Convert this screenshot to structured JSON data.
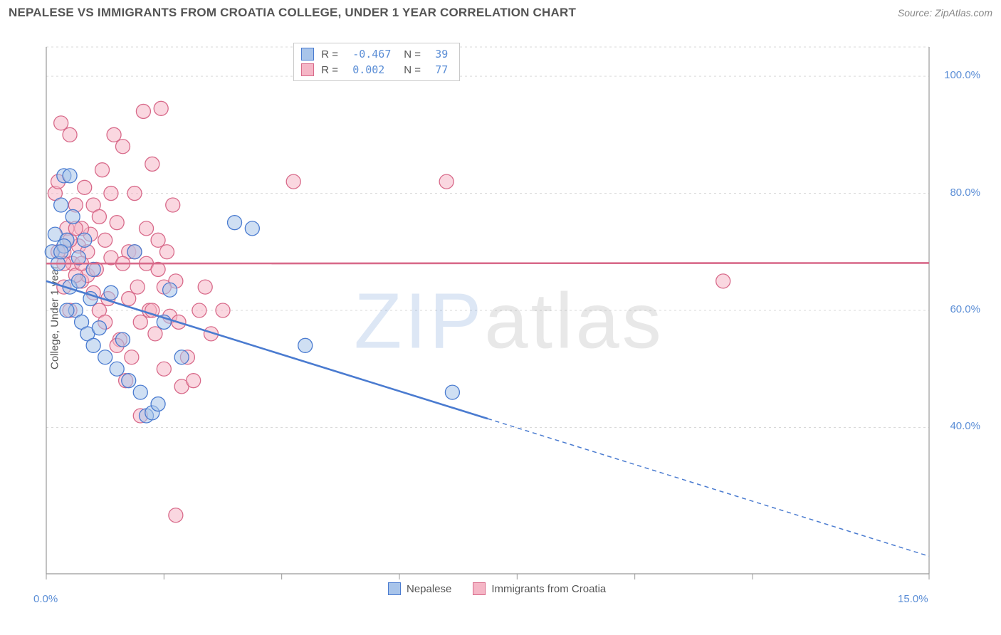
{
  "title": "NEPALESE VS IMMIGRANTS FROM CROATIA COLLEGE, UNDER 1 YEAR CORRELATION CHART",
  "source": "Source: ZipAtlas.com",
  "watermark": {
    "zip": "ZIP",
    "atlas": "atlas"
  },
  "chart": {
    "type": "scatter",
    "background_color": "#ffffff",
    "grid_color": "#d9d9d9",
    "axis_color": "#999999",
    "label_fontsize": 15,
    "ylabel": "College, Under 1 year",
    "xlim": [
      0,
      15
    ],
    "ylim": [
      15,
      105
    ],
    "xticks": [
      0,
      2,
      4,
      6,
      8,
      10,
      12,
      15
    ],
    "xtick_labels_shown": {
      "0": "0.0%",
      "15": "15.0%"
    },
    "yticks": [
      40,
      60,
      80,
      100
    ],
    "ytick_labels": [
      "40.0%",
      "60.0%",
      "80.0%",
      "100.0%"
    ],
    "series": [
      {
        "name": "Nepalese",
        "stroke": "#4a7bd0",
        "fill": "#a8c4ea",
        "fill_opacity": 0.55,
        "marker_radius": 10,
        "r": "-0.467",
        "n": "39",
        "trend": {
          "y_at_xmin": 65,
          "y_at_xmax": 18,
          "solid_until_x": 7.5
        },
        "points": [
          [
            0.1,
            70
          ],
          [
            0.15,
            73
          ],
          [
            0.2,
            68
          ],
          [
            0.25,
            78
          ],
          [
            0.3,
            83
          ],
          [
            0.35,
            72
          ],
          [
            0.4,
            64
          ],
          [
            0.5,
            60
          ],
          [
            0.55,
            65
          ],
          [
            0.6,
            58
          ],
          [
            0.7,
            56
          ],
          [
            0.75,
            62
          ],
          [
            0.8,
            54
          ],
          [
            0.9,
            57
          ],
          [
            1.0,
            52
          ],
          [
            1.1,
            63
          ],
          [
            1.2,
            50
          ],
          [
            1.3,
            55
          ],
          [
            1.4,
            48
          ],
          [
            1.5,
            70
          ],
          [
            1.6,
            46
          ],
          [
            1.7,
            42
          ],
          [
            1.8,
            42.5
          ],
          [
            1.9,
            44
          ],
          [
            2.0,
            58
          ],
          [
            2.1,
            63.5
          ],
          [
            2.3,
            52
          ],
          [
            3.2,
            75
          ],
          [
            3.5,
            74
          ],
          [
            4.4,
            54
          ],
          [
            6.9,
            46
          ],
          [
            0.3,
            71
          ],
          [
            0.45,
            76
          ],
          [
            0.35,
            60
          ],
          [
            0.55,
            69
          ],
          [
            0.65,
            72
          ],
          [
            0.8,
            67
          ],
          [
            0.4,
            83
          ],
          [
            0.25,
            70
          ]
        ]
      },
      {
        "name": "Immigrants from Croatia",
        "stroke": "#d86a8a",
        "fill": "#f5b6c6",
        "fill_opacity": 0.55,
        "marker_radius": 10,
        "r": "0.002",
        "n": "77",
        "trend": {
          "y_at_xmin": 68,
          "y_at_xmax": 68.1,
          "solid_until_x": 15
        },
        "points": [
          [
            0.15,
            80
          ],
          [
            0.2,
            82
          ],
          [
            0.25,
            92
          ],
          [
            0.3,
            70
          ],
          [
            0.35,
            74
          ],
          [
            0.4,
            90
          ],
          [
            0.45,
            68
          ],
          [
            0.5,
            78
          ],
          [
            0.55,
            71
          ],
          [
            0.6,
            65
          ],
          [
            0.65,
            81
          ],
          [
            0.7,
            66
          ],
          [
            0.75,
            73
          ],
          [
            0.8,
            78
          ],
          [
            0.85,
            67
          ],
          [
            0.9,
            60
          ],
          [
            0.95,
            84
          ],
          [
            1.0,
            72
          ],
          [
            1.05,
            62
          ],
          [
            1.1,
            69
          ],
          [
            1.15,
            90
          ],
          [
            1.2,
            75
          ],
          [
            1.25,
            55
          ],
          [
            1.3,
            88
          ],
          [
            1.35,
            48
          ],
          [
            1.4,
            70
          ],
          [
            1.45,
            52
          ],
          [
            1.5,
            80
          ],
          [
            1.55,
            64
          ],
          [
            1.6,
            42
          ],
          [
            1.65,
            94
          ],
          [
            1.7,
            68
          ],
          [
            1.75,
            60
          ],
          [
            1.8,
            85
          ],
          [
            1.85,
            56
          ],
          [
            1.9,
            72
          ],
          [
            1.95,
            94.5
          ],
          [
            2.0,
            50
          ],
          [
            2.05,
            70
          ],
          [
            2.1,
            59
          ],
          [
            2.15,
            78
          ],
          [
            2.2,
            65
          ],
          [
            2.25,
            58
          ],
          [
            2.3,
            47
          ],
          [
            2.4,
            52
          ],
          [
            2.5,
            48
          ],
          [
            2.6,
            60
          ],
          [
            2.7,
            64
          ],
          [
            2.8,
            56
          ],
          [
            3.0,
            60
          ],
          [
            4.2,
            82
          ],
          [
            6.8,
            82
          ],
          [
            11.5,
            65
          ],
          [
            0.3,
            68
          ],
          [
            0.4,
            72
          ],
          [
            0.5,
            66
          ],
          [
            0.6,
            74
          ],
          [
            0.7,
            70
          ],
          [
            0.8,
            63
          ],
          [
            0.9,
            76
          ],
          [
            1.0,
            58
          ],
          [
            1.1,
            80
          ],
          [
            1.2,
            54
          ],
          [
            1.3,
            68
          ],
          [
            1.4,
            62
          ],
          [
            1.5,
            70
          ],
          [
            1.6,
            58
          ],
          [
            1.7,
            74
          ],
          [
            1.8,
            60
          ],
          [
            1.9,
            67
          ],
          [
            2.0,
            64
          ],
          [
            2.2,
            25
          ],
          [
            0.2,
            70
          ],
          [
            0.3,
            64
          ],
          [
            0.4,
            60
          ],
          [
            0.5,
            74
          ],
          [
            0.6,
            68
          ]
        ]
      }
    ]
  },
  "legend_top": {
    "rows": [
      {
        "swatch_fill": "#a8c4ea",
        "swatch_stroke": "#4a7bd0",
        "r_label": "R = ",
        "r": "-0.467",
        "n_label": "N = ",
        "n": "39"
      },
      {
        "swatch_fill": "#f5b6c6",
        "swatch_stroke": "#d86a8a",
        "r_label": "R = ",
        "r": "0.002",
        "n_label": "N = ",
        "n": "77"
      }
    ]
  },
  "legend_bottom": {
    "items": [
      {
        "swatch_fill": "#a8c4ea",
        "swatch_stroke": "#4a7bd0",
        "label": "Nepalese"
      },
      {
        "swatch_fill": "#f5b6c6",
        "swatch_stroke": "#d86a8a",
        "label": "Immigrants from Croatia"
      }
    ]
  }
}
